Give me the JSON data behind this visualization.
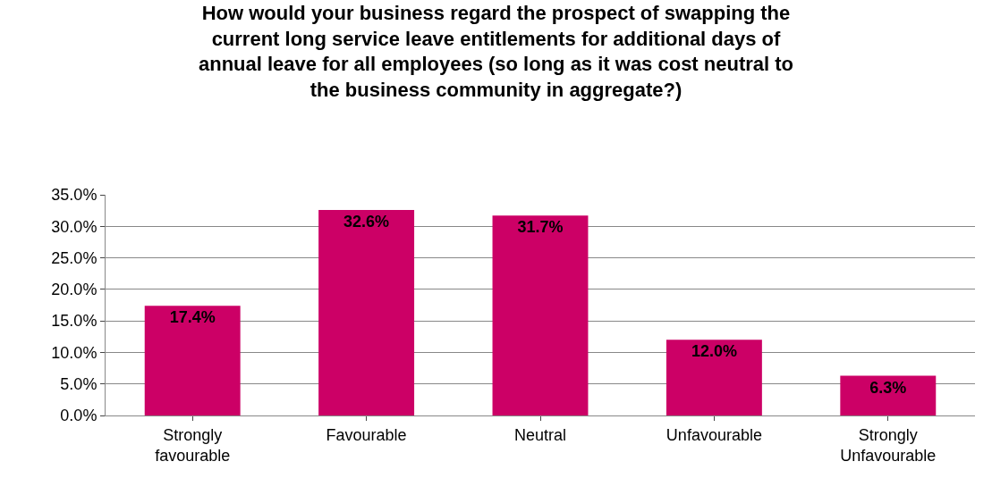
{
  "chart_data": {
    "type": "bar",
    "title": "How would your business regard the prospect of swapping the\ncurrent long service leave entitlements for additional days of\nannual leave for all employees (so long as it was cost neutral to\nthe business community in aggregate?)",
    "categories": [
      "Strongly\nfavourable",
      "Favourable",
      "Neutral",
      "Unfavourable",
      "Strongly\nUnfavourable"
    ],
    "values": [
      17.4,
      32.6,
      31.7,
      12.0,
      6.3
    ],
    "value_labels": [
      "17.4%",
      "32.6%",
      "31.7%",
      "12.0%",
      "6.3%"
    ],
    "color": "#cc0066",
    "ylim": [
      0,
      35
    ],
    "yticks": [
      {
        "value": 0,
        "label": "0.0%"
      },
      {
        "value": 5,
        "label": "5.0%"
      },
      {
        "value": 10,
        "label": "10.0%"
      },
      {
        "value": 15,
        "label": "15.0%"
      },
      {
        "value": 20,
        "label": "20.0%"
      },
      {
        "value": 25,
        "label": "25.0%"
      },
      {
        "value": 30,
        "label": "30.0%"
      },
      {
        "value": 35,
        "label": "35.0%"
      }
    ],
    "grid": "y",
    "legend": false
  }
}
